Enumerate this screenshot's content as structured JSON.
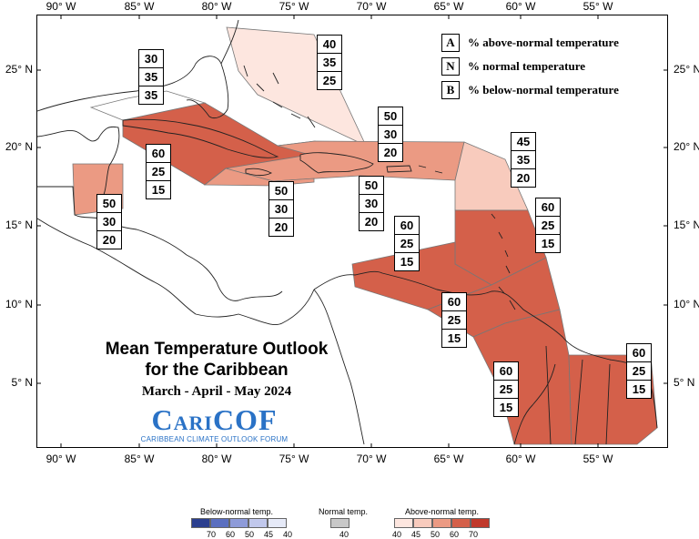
{
  "map": {
    "title_line1": "Mean Temperature Outlook",
    "title_line2": "for the Caribbean",
    "dates": "March - April - May 2024",
    "logo_main": "CariCOF",
    "logo_sub": "CARIBBEAN CLIMATE OUTLOOK FORUM",
    "longitude_labels": [
      "90° W",
      "85° W",
      "80° W",
      "75° W",
      "70° W",
      "65° W",
      "60° W",
      "55° W"
    ],
    "latitude_labels": [
      "25° N",
      "20° N",
      "15° N",
      "10° N",
      "5° N"
    ]
  },
  "key": [
    {
      "letter": "A",
      "text": "% above-normal temperature"
    },
    {
      "letter": "N",
      "text": "% normal temperature"
    },
    {
      "letter": "B",
      "text": "% below-normal temperature"
    }
  ],
  "regions": [
    {
      "name": "bahamas",
      "values": [
        "40",
        "35",
        "25"
      ],
      "fill": "#fde6df"
    },
    {
      "name": "northwest",
      "values": [
        "30",
        "35",
        "35"
      ],
      "fill": "#ffffff"
    },
    {
      "name": "greater-antilles-east",
      "values": [
        "50",
        "30",
        "20"
      ],
      "fill": "#eb9a83"
    },
    {
      "name": "leeward-north",
      "values": [
        "45",
        "35",
        "20"
      ],
      "fill": "#f8cbbd"
    },
    {
      "name": "cuba-jamaica-cayman",
      "values": [
        "60",
        "25",
        "15"
      ],
      "fill": "#d4604a"
    },
    {
      "name": "belize",
      "values": [
        "50",
        "30",
        "20"
      ],
      "fill": "#eb9a83"
    },
    {
      "name": "jamaica-haiti-south",
      "values": [
        "50",
        "30",
        "20"
      ],
      "fill": "#eb9a83"
    },
    {
      "name": "hispaniola-south",
      "values": [
        "50",
        "30",
        "20"
      ],
      "fill": "#eb9a83"
    },
    {
      "name": "lesser-antilles",
      "values": [
        "60",
        "25",
        "15"
      ],
      "fill": "#d4604a"
    },
    {
      "name": "abc-islands",
      "values": [
        "60",
        "25",
        "15"
      ],
      "fill": "#d4604a"
    },
    {
      "name": "trinidad",
      "values": [
        "60",
        "25",
        "15"
      ],
      "fill": "#d4604a"
    },
    {
      "name": "guyana",
      "values": [
        "60",
        "25",
        "15"
      ],
      "fill": "#d4604a"
    },
    {
      "name": "suriname-guiana",
      "values": [
        "60",
        "25",
        "15"
      ],
      "fill": "#d4604a"
    }
  ],
  "legend": {
    "below": {
      "title": "Below-normal temp.",
      "values": [
        "70",
        "60",
        "50",
        "45",
        "40"
      ],
      "colors": [
        "#2b3f8f",
        "#5b6fc0",
        "#8e9bd9",
        "#c1c8ec",
        "#e6eaf8"
      ]
    },
    "normal": {
      "title": "Normal temp.",
      "values": [
        "40"
      ],
      "colors": [
        "#c8c8c8"
      ]
    },
    "above": {
      "title": "Above-normal temp.",
      "values": [
        "40",
        "45",
        "50",
        "60",
        "70"
      ],
      "colors": [
        "#fde6df",
        "#f8cbbd",
        "#eb9a83",
        "#d4604a",
        "#c0392b"
      ]
    }
  }
}
